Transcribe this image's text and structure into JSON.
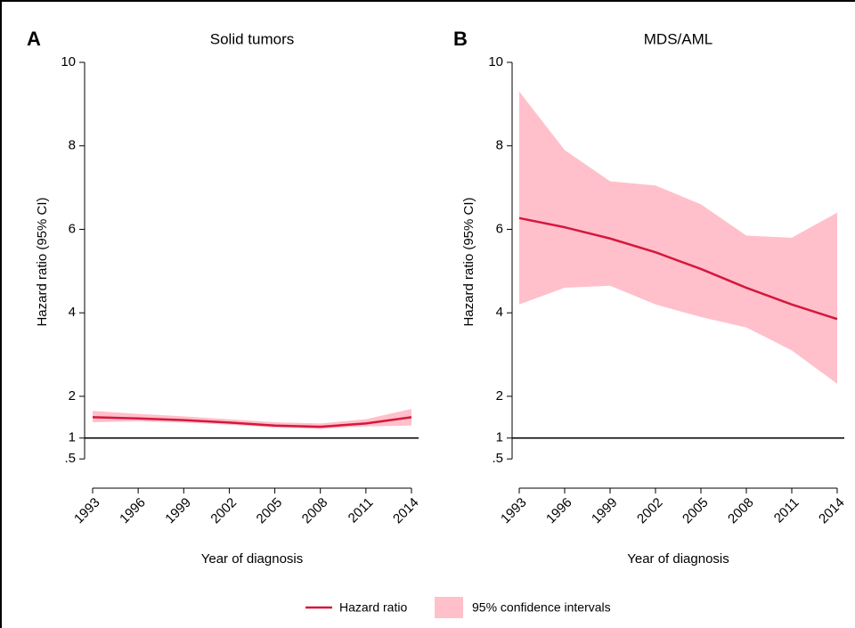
{
  "chart_data": [
    {
      "type": "line-band",
      "panel": "A",
      "title": "Solid tumors",
      "ylabel": "Hazard ratio (95% CI)",
      "xlabel": "Year of diagnosis",
      "x": [
        1993,
        1996,
        1999,
        2002,
        2005,
        2008,
        2011,
        2014
      ],
      "series": [
        {
          "name": "Hazard ratio",
          "color": "#d6173d",
          "band_color": "#ffc0cb",
          "values": [
            1.5,
            1.47,
            1.43,
            1.37,
            1.3,
            1.27,
            1.35,
            1.5
          ],
          "lower": [
            1.38,
            1.4,
            1.37,
            1.32,
            1.25,
            1.22,
            1.28,
            1.3
          ],
          "upper": [
            1.65,
            1.58,
            1.52,
            1.45,
            1.38,
            1.35,
            1.45,
            1.7
          ]
        }
      ],
      "xlim": [
        1993,
        2014
      ],
      "xticks": [
        1993,
        1996,
        1999,
        2002,
        2005,
        2008,
        2011,
        2014
      ],
      "ylim": [
        -0.2,
        10
      ],
      "yticks": [
        {
          "value": 0.5,
          "label": ".5"
        },
        1,
        2,
        4,
        6,
        8,
        10
      ],
      "hline": 1
    },
    {
      "type": "line-band",
      "panel": "B",
      "title": "MDS/AML",
      "ylabel": "Hazard ratio (95% CI)",
      "xlabel": "Year of diagnosis",
      "x": [
        1993,
        1996,
        1999,
        2002,
        2005,
        2008,
        2011,
        2014
      ],
      "series": [
        {
          "name": "95% confidence intervals",
          "color": "#d6173d",
          "band_color": "#ffc0cb",
          "values": [
            6.27,
            6.05,
            5.78,
            5.45,
            5.05,
            4.6,
            4.2,
            3.85
          ],
          "lower": [
            4.2,
            4.6,
            4.65,
            4.2,
            3.9,
            3.65,
            3.1,
            2.3
          ],
          "upper": [
            9.3,
            7.9,
            7.15,
            7.05,
            6.6,
            5.85,
            5.8,
            6.4
          ]
        }
      ],
      "xlim": [
        1993,
        2014
      ],
      "xticks": [
        1993,
        1996,
        1999,
        2002,
        2005,
        2008,
        2011,
        2014
      ],
      "ylim": [
        -0.2,
        10
      ],
      "yticks": [
        {
          "value": 0.5,
          "label": ".5"
        },
        1,
        2,
        4,
        6,
        8,
        10
      ],
      "hline": 1
    }
  ]
}
